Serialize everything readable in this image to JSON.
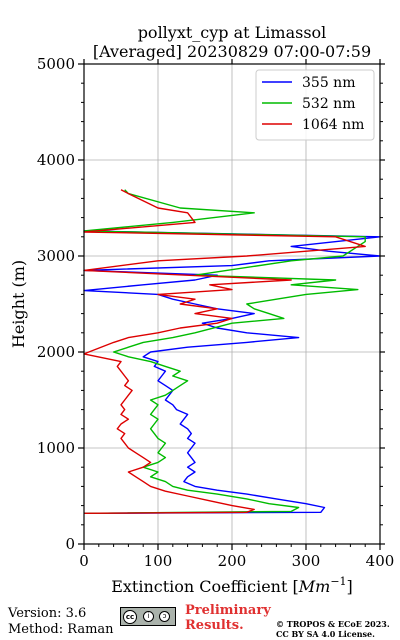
{
  "chart_data": {
    "type": "line",
    "title_line1": "pollyxt_cyp at Limassol",
    "title_line2": "[Averaged] 20230829 07:00-07:59",
    "xlabel_text": "Extinction Coefficient [",
    "xlabel_unit": "Mm",
    "xlabel_exp": "−1",
    "xlabel_close": "]",
    "ylabel": "Height (m)",
    "xlim": [
      0,
      400
    ],
    "ylim": [
      0,
      5000
    ],
    "xticks": [
      "0",
      "100",
      "200",
      "300",
      "400"
    ],
    "yticks": [
      "0",
      "1000",
      "2000",
      "3000",
      "4000",
      "5000"
    ],
    "grid": true,
    "legend_position": "top-right",
    "series": [
      {
        "name": "355 nm",
        "color": "#0000ff",
        "points": [
          [
            0,
            320
          ],
          [
            320,
            330
          ],
          [
            325,
            380
          ],
          [
            300,
            420
          ],
          [
            260,
            470
          ],
          [
            220,
            520
          ],
          [
            180,
            560
          ],
          [
            150,
            600
          ],
          [
            135,
            650
          ],
          [
            140,
            700
          ],
          [
            150,
            750
          ],
          [
            140,
            800
          ],
          [
            150,
            850
          ],
          [
            145,
            900
          ],
          [
            140,
            950
          ],
          [
            145,
            1000
          ],
          [
            150,
            1050
          ],
          [
            140,
            1100
          ],
          [
            145,
            1150
          ],
          [
            140,
            1200
          ],
          [
            130,
            1250
          ],
          [
            135,
            1300
          ],
          [
            140,
            1350
          ],
          [
            125,
            1400
          ],
          [
            120,
            1450
          ],
          [
            110,
            1500
          ],
          [
            115,
            1550
          ],
          [
            120,
            1600
          ],
          [
            110,
            1650
          ],
          [
            100,
            1700
          ],
          [
            105,
            1750
          ],
          [
            110,
            1800
          ],
          [
            95,
            1850
          ],
          [
            100,
            1900
          ],
          [
            80,
            1950
          ],
          [
            90,
            2000
          ],
          [
            140,
            2050
          ],
          [
            220,
            2100
          ],
          [
            290,
            2150
          ],
          [
            220,
            2200
          ],
          [
            180,
            2250
          ],
          [
            160,
            2300
          ],
          [
            200,
            2350
          ],
          [
            230,
            2400
          ],
          [
            180,
            2450
          ],
          [
            150,
            2500
          ],
          [
            120,
            2550
          ],
          [
            100,
            2600
          ],
          [
            0,
            2640
          ],
          [
            80,
            2700
          ],
          [
            150,
            2750
          ],
          [
            180,
            2800
          ],
          [
            0,
            2850
          ],
          [
            200,
            2900
          ],
          [
            250,
            2950
          ],
          [
            400,
            3000
          ],
          [
            330,
            3050
          ],
          [
            280,
            3100
          ],
          [
            400,
            3200
          ],
          [
            0,
            3260
          ]
        ]
      },
      {
        "name": "532 nm",
        "color": "#00bb00",
        "points": [
          [
            0,
            320
          ],
          [
            280,
            340
          ],
          [
            290,
            380
          ],
          [
            250,
            420
          ],
          [
            220,
            470
          ],
          [
            180,
            520
          ],
          [
            140,
            560
          ],
          [
            120,
            600
          ],
          [
            110,
            650
          ],
          [
            90,
            700
          ],
          [
            100,
            750
          ],
          [
            80,
            800
          ],
          [
            100,
            850
          ],
          [
            110,
            900
          ],
          [
            100,
            950
          ],
          [
            105,
            1000
          ],
          [
            110,
            1050
          ],
          [
            100,
            1100
          ],
          [
            95,
            1150
          ],
          [
            90,
            1200
          ],
          [
            95,
            1250
          ],
          [
            100,
            1300
          ],
          [
            90,
            1350
          ],
          [
            95,
            1400
          ],
          [
            100,
            1450
          ],
          [
            90,
            1500
          ],
          [
            110,
            1550
          ],
          [
            120,
            1600
          ],
          [
            130,
            1650
          ],
          [
            140,
            1700
          ],
          [
            120,
            1750
          ],
          [
            130,
            1800
          ],
          [
            110,
            1850
          ],
          [
            90,
            1900
          ],
          [
            60,
            1950
          ],
          [
            40,
            2000
          ],
          [
            80,
            2100
          ],
          [
            120,
            2150
          ],
          [
            150,
            2200
          ],
          [
            200,
            2300
          ],
          [
            270,
            2350
          ],
          [
            250,
            2400
          ],
          [
            230,
            2450
          ],
          [
            220,
            2500
          ],
          [
            260,
            2550
          ],
          [
            300,
            2600
          ],
          [
            370,
            2650
          ],
          [
            280,
            2700
          ],
          [
            340,
            2750
          ],
          [
            150,
            2800
          ],
          [
            280,
            2950
          ],
          [
            350,
            3000
          ],
          [
            380,
            3150
          ],
          [
            380,
            3200
          ],
          [
            0,
            3260
          ],
          [
            120,
            3350
          ],
          [
            230,
            3450
          ],
          [
            130,
            3500
          ],
          [
            60,
            3650
          ],
          [
            55,
            3690
          ]
        ]
      },
      {
        "name": "1064 nm",
        "color": "#dd0000",
        "points": [
          [
            0,
            320
          ],
          [
            220,
            330
          ],
          [
            230,
            360
          ],
          [
            200,
            400
          ],
          [
            170,
            450
          ],
          [
            140,
            500
          ],
          [
            110,
            550
          ],
          [
            90,
            600
          ],
          [
            80,
            650
          ],
          [
            70,
            700
          ],
          [
            60,
            750
          ],
          [
            80,
            800
          ],
          [
            90,
            850
          ],
          [
            80,
            900
          ],
          [
            70,
            950
          ],
          [
            60,
            1000
          ],
          [
            55,
            1050
          ],
          [
            50,
            1100
          ],
          [
            55,
            1150
          ],
          [
            45,
            1200
          ],
          [
            50,
            1250
          ],
          [
            60,
            1300
          ],
          [
            50,
            1350
          ],
          [
            55,
            1400
          ],
          [
            50,
            1450
          ],
          [
            55,
            1500
          ],
          [
            60,
            1550
          ],
          [
            65,
            1600
          ],
          [
            55,
            1650
          ],
          [
            60,
            1700
          ],
          [
            55,
            1750
          ],
          [
            50,
            1800
          ],
          [
            45,
            1850
          ],
          [
            50,
            1900
          ],
          [
            0,
            1980
          ],
          [
            40,
            2100
          ],
          [
            60,
            2150
          ],
          [
            100,
            2200
          ],
          [
            130,
            2250
          ],
          [
            180,
            2300
          ],
          [
            200,
            2350
          ],
          [
            150,
            2400
          ],
          [
            180,
            2450
          ],
          [
            130,
            2500
          ],
          [
            150,
            2550
          ],
          [
            100,
            2600
          ],
          [
            200,
            2650
          ],
          [
            170,
            2700
          ],
          [
            280,
            2750
          ],
          [
            0,
            2850
          ],
          [
            100,
            2950
          ],
          [
            220,
            3000
          ],
          [
            380,
            3100
          ],
          [
            340,
            3200
          ],
          [
            0,
            3250
          ],
          [
            150,
            3350
          ],
          [
            140,
            3450
          ],
          [
            100,
            3500
          ],
          [
            60,
            3650
          ],
          [
            50,
            3690
          ]
        ]
      }
    ]
  },
  "footer": {
    "version": "Version: 3.6",
    "method": "Method: Raman",
    "license_badge": {
      "cc": "cc",
      "by": "i",
      "sa": "ↄ"
    },
    "preliminary_line1": "Preliminary",
    "preliminary_line2": "Results.",
    "copyright_line1": "© TROPOS & ECoE 2023.",
    "copyright_line2": "CC BY SA 4.0 License."
  }
}
